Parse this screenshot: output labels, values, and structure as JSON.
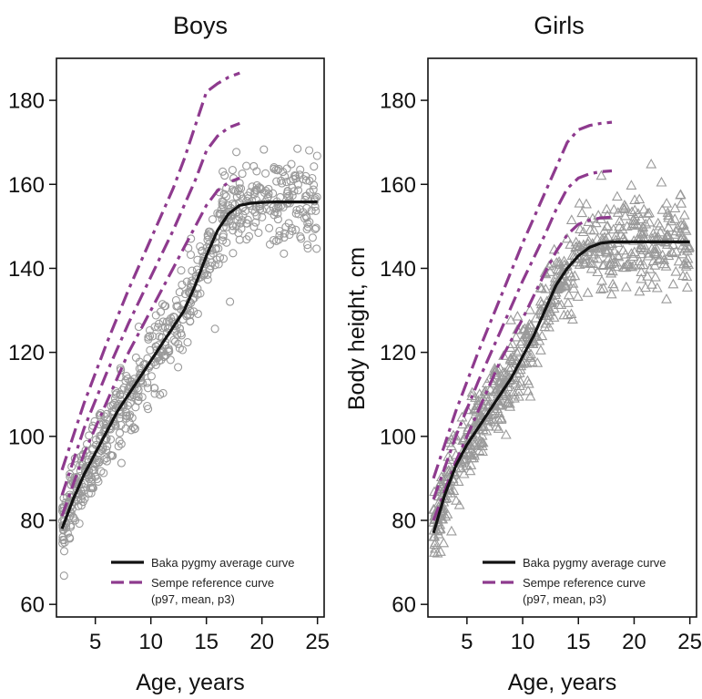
{
  "chart_data": [
    {
      "type": "scatter",
      "title": "Boys",
      "xlabel": "Age, years",
      "ylabel": "",
      "xlim": [
        1.5,
        25.6
      ],
      "ylim": [
        57,
        190
      ],
      "xticks": [
        5,
        10,
        15,
        20,
        25
      ],
      "yticks": [
        60,
        80,
        100,
        120,
        140,
        160,
        180
      ],
      "grid": false,
      "legend_position": "bottom-right",
      "marker": "circle",
      "colors": {
        "points": "#9a9a9a",
        "average": "#111111",
        "reference": "#8e3a8e"
      },
      "series": [
        {
          "name": "Baka pygmy average curve",
          "style": "solid",
          "x": [
            2,
            3,
            4,
            5,
            6,
            7,
            8,
            9,
            10,
            11,
            12,
            13,
            14,
            15,
            16,
            17,
            18,
            19,
            20,
            21,
            22,
            23,
            24,
            25
          ],
          "y": [
            78,
            85,
            91,
            96,
            101,
            106,
            110,
            114,
            118,
            122,
            126,
            130,
            136,
            143,
            149,
            153,
            155,
            155.5,
            155.7,
            155.8,
            155.8,
            155.8,
            155.8,
            155.8
          ]
        },
        {
          "name": "Sempe reference curve",
          "sublabel": "(p97, mean, p3)",
          "style": "dashed",
          "curves": [
            {
              "x": [
                2,
                4,
                6,
                8,
                10,
                12,
                13,
                14,
                15,
                16,
                17,
                18
              ],
              "y": [
                92,
                108,
                122,
                135,
                147,
                159,
                166,
                174,
                182,
                184,
                185.5,
                186.5
              ]
            },
            {
              "x": [
                2,
                4,
                6,
                8,
                10,
                12,
                13,
                14,
                15,
                16,
                17,
                18
              ],
              "y": [
                86,
                102,
                115,
                127,
                138,
                149,
                155,
                161,
                168,
                171.5,
                173.5,
                174.5
              ]
            },
            {
              "x": [
                2,
                4,
                6,
                8,
                10,
                12,
                13,
                14,
                15,
                16,
                17,
                18
              ],
              "y": [
                81,
                96,
                108,
                120,
                130,
                140,
                145,
                150,
                155,
                158.5,
                160.5,
                161.5
              ]
            }
          ]
        }
      ],
      "scatter_description": {
        "n_points": 700,
        "x_range": [
          2,
          25
        ],
        "spread_sd_cm": 5
      }
    },
    {
      "type": "scatter",
      "title": "Girls",
      "xlabel": "Age, years",
      "ylabel": "Body height, cm",
      "xlim": [
        1.5,
        25.6
      ],
      "ylim": [
        57,
        190
      ],
      "xticks": [
        5,
        10,
        15,
        20,
        25
      ],
      "yticks": [
        60,
        80,
        100,
        120,
        140,
        160,
        180
      ],
      "grid": false,
      "legend_position": "bottom-right",
      "marker": "triangle",
      "colors": {
        "points": "#9a9a9a",
        "average": "#111111",
        "reference": "#8e3a8e"
      },
      "series": [
        {
          "name": "Baka pygmy average curve",
          "style": "solid",
          "x": [
            2,
            3,
            4,
            5,
            6,
            7,
            8,
            9,
            10,
            11,
            12,
            13,
            14,
            15,
            16,
            17,
            18,
            19,
            20,
            21,
            22,
            23,
            24,
            25
          ],
          "y": [
            77,
            86,
            93,
            98,
            102,
            106,
            110,
            114,
            119,
            124,
            130,
            136,
            140,
            143,
            145,
            146,
            146.3,
            146.3,
            146.3,
            146.3,
            146.3,
            146.3,
            146.3,
            146.3
          ]
        },
        {
          "name": "Sempe reference curve",
          "sublabel": "(p97, mean, p3)",
          "style": "dashed",
          "curves": [
            {
              "x": [
                2,
                4,
                6,
                8,
                10,
                12,
                13,
                14,
                15,
                16,
                17,
                18
              ],
              "y": [
                90,
                106,
                120,
                133,
                146,
                158,
                164,
                170,
                173,
                174,
                174.5,
                174.8
              ]
            },
            {
              "x": [
                2,
                4,
                6,
                8,
                10,
                12,
                13,
                14,
                15,
                16,
                17,
                18
              ],
              "y": [
                85,
                100,
                113,
                125,
                137,
                148,
                154,
                159,
                161.5,
                162.5,
                163,
                163.2
              ]
            },
            {
              "x": [
                2,
                4,
                6,
                8,
                10,
                12,
                13,
                14,
                15,
                16,
                17,
                18
              ],
              "y": [
                80,
                94,
                106,
                118,
                128,
                139,
                144,
                148,
                150.5,
                151.5,
                152,
                152.2
              ]
            }
          ]
        }
      ],
      "scatter_description": {
        "n_points": 700,
        "x_range": [
          2,
          25
        ],
        "spread_sd_cm": 5
      }
    }
  ]
}
